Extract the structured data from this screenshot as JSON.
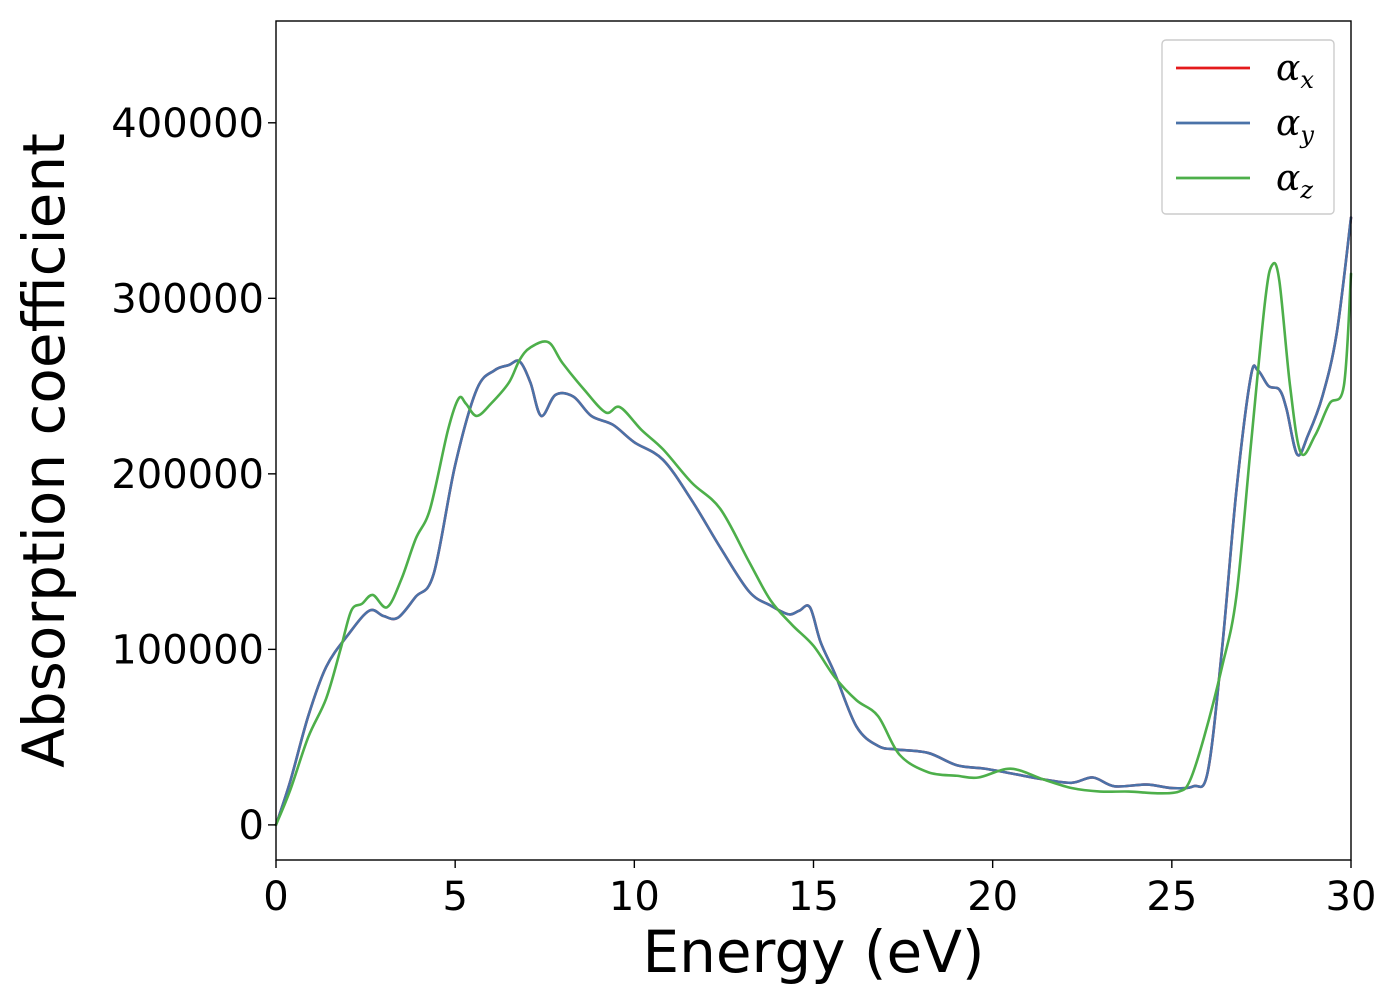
{
  "chart_data": {
    "type": "line",
    "title": "",
    "xlabel": "Energy (eV)",
    "ylabel": "Absorption coefficient",
    "xlim": [
      0,
      30
    ],
    "ylim": [
      -20000,
      458000
    ],
    "xticks": [
      0,
      5,
      10,
      15,
      20,
      25,
      30
    ],
    "xtick_labels": [
      "0",
      "5",
      "10",
      "15",
      "20",
      "25",
      "30"
    ],
    "yticks": [
      0,
      100000,
      200000,
      300000,
      400000
    ],
    "ytick_labels": [
      "0",
      "100000",
      "200000",
      "300000",
      "400000"
    ],
    "grid": false,
    "legend": "top-right",
    "series": [
      {
        "name": "α",
        "subscript": "x",
        "color": "#e41a1c",
        "x": [
          0,
          0.4,
          0.9,
          1.4,
          2.0,
          2.6,
          3.0,
          3.4,
          3.9,
          4.4,
          5.0,
          5.6,
          6.1,
          6.5,
          6.8,
          7.1,
          7.4,
          7.8,
          8.3,
          8.8,
          9.4,
          10.0,
          10.8,
          11.6,
          12.4,
          13.2,
          13.8,
          14.3,
          14.6,
          14.9,
          15.2,
          15.6,
          16.2,
          16.8,
          17.3,
          18.2,
          19.0,
          19.8,
          20.6,
          21.4,
          22.2,
          22.8,
          23.4,
          24.3,
          25.0,
          25.6,
          26.0,
          26.4,
          26.8,
          27.2,
          27.4,
          27.7,
          28.0,
          28.2,
          28.5,
          28.8,
          29.2,
          29.6,
          30.0
        ],
        "y": [
          0,
          25000,
          62000,
          90000,
          108000,
          122000,
          119000,
          118000,
          130000,
          143000,
          205000,
          248000,
          259000,
          262000,
          264000,
          252000,
          233000,
          245000,
          244000,
          233000,
          228000,
          218000,
          208000,
          185000,
          158000,
          133000,
          125000,
          120000,
          122000,
          124000,
          104000,
          86000,
          56000,
          45000,
          43000,
          41000,
          34000,
          32000,
          29000,
          26000,
          24000,
          27000,
          22000,
          23000,
          21000,
          22000,
          30000,
          100000,
          190000,
          255000,
          259000,
          250000,
          248000,
          237000,
          211000,
          222000,
          244000,
          280000,
          346000
        ]
      },
      {
        "name": "α",
        "subscript": "y",
        "color": "#4a72a8",
        "x": [
          0,
          0.4,
          0.9,
          1.4,
          2.0,
          2.6,
          3.0,
          3.4,
          3.9,
          4.4,
          5.0,
          5.6,
          6.1,
          6.5,
          6.8,
          7.1,
          7.4,
          7.8,
          8.3,
          8.8,
          9.4,
          10.0,
          10.8,
          11.6,
          12.4,
          13.2,
          13.8,
          14.3,
          14.6,
          14.9,
          15.2,
          15.6,
          16.2,
          16.8,
          17.3,
          18.2,
          19.0,
          19.8,
          20.6,
          21.4,
          22.2,
          22.8,
          23.4,
          24.3,
          25.0,
          25.6,
          26.0,
          26.4,
          26.8,
          27.2,
          27.4,
          27.7,
          28.0,
          28.2,
          28.5,
          28.8,
          29.2,
          29.6,
          30.0
        ],
        "y": [
          0,
          25000,
          62000,
          90000,
          108000,
          122000,
          119000,
          118000,
          130000,
          143000,
          205000,
          248000,
          259000,
          262000,
          264000,
          252000,
          233000,
          245000,
          244000,
          233000,
          228000,
          218000,
          208000,
          185000,
          158000,
          133000,
          125000,
          120000,
          122000,
          124000,
          104000,
          86000,
          56000,
          45000,
          43000,
          41000,
          34000,
          32000,
          29000,
          26000,
          24000,
          27000,
          22000,
          23000,
          21000,
          22000,
          30000,
          100000,
          190000,
          255000,
          259000,
          250000,
          248000,
          237000,
          211000,
          222000,
          244000,
          280000,
          346000
        ]
      },
      {
        "name": "α",
        "subscript": "z",
        "color": "#4daf4a",
        "x": [
          0,
          0.4,
          0.9,
          1.4,
          1.8,
          2.1,
          2.4,
          2.7,
          3.1,
          3.5,
          3.9,
          4.3,
          4.8,
          5.1,
          5.3,
          5.6,
          6.0,
          6.5,
          6.8,
          7.1,
          7.6,
          8.0,
          8.6,
          9.2,
          9.6,
          10.2,
          10.8,
          11.6,
          12.4,
          13.2,
          13.8,
          14.4,
          15.0,
          15.6,
          16.2,
          16.8,
          17.4,
          18.2,
          19.0,
          19.6,
          20.5,
          21.4,
          22.2,
          23.0,
          23.8,
          24.6,
          25.2,
          25.5,
          25.9,
          26.4,
          26.8,
          27.2,
          27.6,
          27.8,
          28.0,
          28.3,
          28.6,
          29.0,
          29.4,
          29.8,
          30.0
        ],
        "y": [
          0,
          20000,
          50000,
          72000,
          100000,
          122000,
          126000,
          131000,
          124000,
          140000,
          163000,
          180000,
          225000,
          243000,
          240000,
          233000,
          240000,
          252000,
          265000,
          272000,
          275000,
          263000,
          248000,
          235000,
          238000,
          225000,
          214000,
          195000,
          180000,
          150000,
          128000,
          114000,
          102000,
          84000,
          71000,
          62000,
          40000,
          30000,
          28000,
          27000,
          32000,
          26000,
          21000,
          19000,
          19000,
          18000,
          19000,
          25000,
          50000,
          90000,
          130000,
          215000,
          298000,
          319000,
          310000,
          250000,
          212000,
          222000,
          240000,
          250000,
          314000
        ]
      }
    ]
  }
}
